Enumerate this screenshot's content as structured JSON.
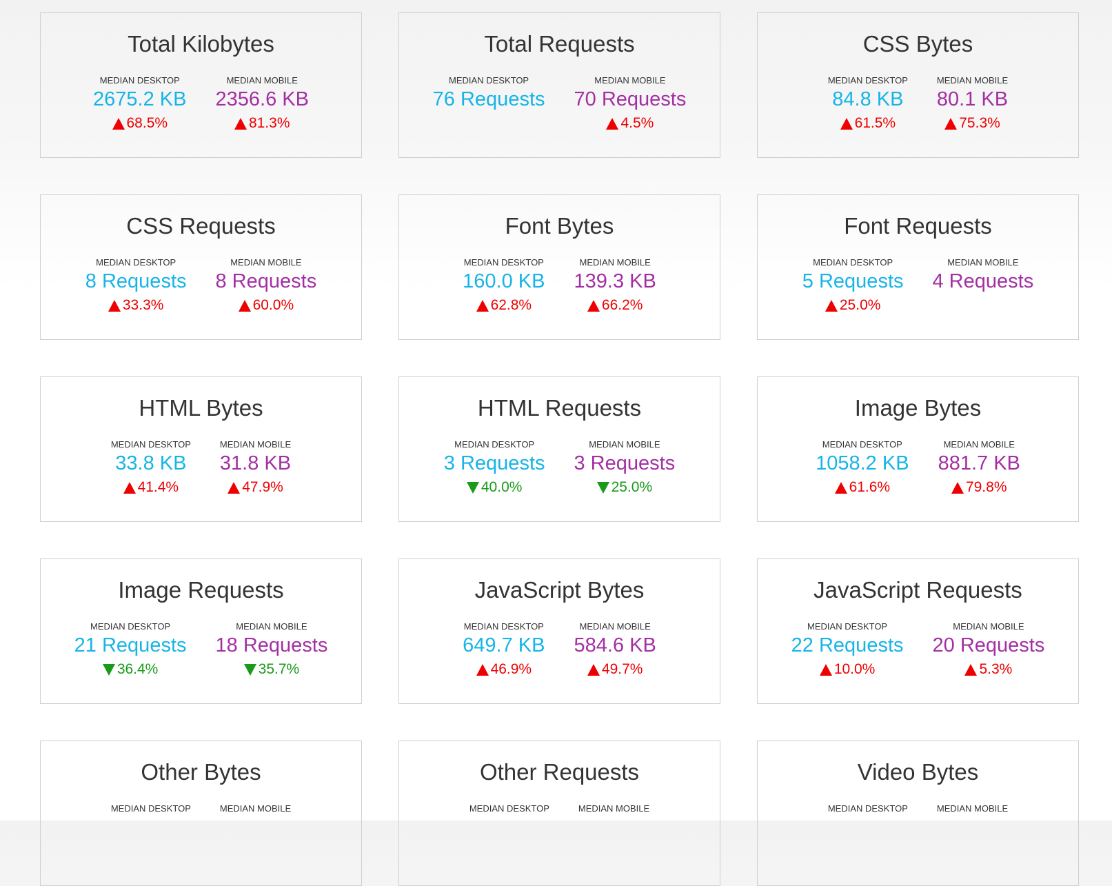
{
  "colors": {
    "desktop": "#17b4e8",
    "mobile": "#a330a3",
    "increase": "#ee0000",
    "decrease": "#1a9a1a"
  },
  "labels": {
    "desktop": "MEDIAN DESKTOP",
    "mobile": "MEDIAN MOBILE"
  },
  "cards": [
    {
      "title": "Total Kilobytes",
      "desktop": {
        "value": "2675.2 KB",
        "change": "68.5%",
        "direction": "up"
      },
      "mobile": {
        "value": "2356.6 KB",
        "change": "81.3%",
        "direction": "up"
      }
    },
    {
      "title": "Total Requests",
      "desktop": {
        "value": "76 Requests",
        "change": "",
        "direction": ""
      },
      "mobile": {
        "value": "70 Requests",
        "change": "4.5%",
        "direction": "up"
      }
    },
    {
      "title": "CSS Bytes",
      "desktop": {
        "value": "84.8 KB",
        "change": "61.5%",
        "direction": "up"
      },
      "mobile": {
        "value": "80.1 KB",
        "change": "75.3%",
        "direction": "up"
      }
    },
    {
      "title": "CSS Requests",
      "desktop": {
        "value": "8 Requests",
        "change": "33.3%",
        "direction": "up"
      },
      "mobile": {
        "value": "8 Requests",
        "change": "60.0%",
        "direction": "up"
      }
    },
    {
      "title": "Font Bytes",
      "desktop": {
        "value": "160.0 KB",
        "change": "62.8%",
        "direction": "up"
      },
      "mobile": {
        "value": "139.3 KB",
        "change": "66.2%",
        "direction": "up"
      }
    },
    {
      "title": "Font Requests",
      "desktop": {
        "value": "5 Requests",
        "change": "25.0%",
        "direction": "up"
      },
      "mobile": {
        "value": "4 Requests",
        "change": "",
        "direction": ""
      }
    },
    {
      "title": "HTML Bytes",
      "desktop": {
        "value": "33.8 KB",
        "change": "41.4%",
        "direction": "up"
      },
      "mobile": {
        "value": "31.8 KB",
        "change": "47.9%",
        "direction": "up"
      }
    },
    {
      "title": "HTML Requests",
      "desktop": {
        "value": "3 Requests",
        "change": "40.0%",
        "direction": "down"
      },
      "mobile": {
        "value": "3 Requests",
        "change": "25.0%",
        "direction": "down"
      }
    },
    {
      "title": "Image Bytes",
      "desktop": {
        "value": "1058.2 KB",
        "change": "61.6%",
        "direction": "up"
      },
      "mobile": {
        "value": "881.7 KB",
        "change": "79.8%",
        "direction": "up"
      }
    },
    {
      "title": "Image Requests",
      "desktop": {
        "value": "21 Requests",
        "change": "36.4%",
        "direction": "down"
      },
      "mobile": {
        "value": "18 Requests",
        "change": "35.7%",
        "direction": "down"
      }
    },
    {
      "title": "JavaScript Bytes",
      "desktop": {
        "value": "649.7 KB",
        "change": "46.9%",
        "direction": "up"
      },
      "mobile": {
        "value": "584.6 KB",
        "change": "49.7%",
        "direction": "up"
      }
    },
    {
      "title": "JavaScript Requests",
      "desktop": {
        "value": "22 Requests",
        "change": "10.0%",
        "direction": "up"
      },
      "mobile": {
        "value": "20 Requests",
        "change": "5.3%",
        "direction": "up"
      }
    },
    {
      "title": "Other Bytes",
      "desktop": {
        "value": "",
        "change": "",
        "direction": ""
      },
      "mobile": {
        "value": "",
        "change": "",
        "direction": ""
      }
    },
    {
      "title": "Other Requests",
      "desktop": {
        "value": "",
        "change": "",
        "direction": ""
      },
      "mobile": {
        "value": "",
        "change": "",
        "direction": ""
      }
    },
    {
      "title": "Video Bytes",
      "desktop": {
        "value": "",
        "change": "",
        "direction": ""
      },
      "mobile": {
        "value": "",
        "change": "",
        "direction": ""
      }
    }
  ]
}
